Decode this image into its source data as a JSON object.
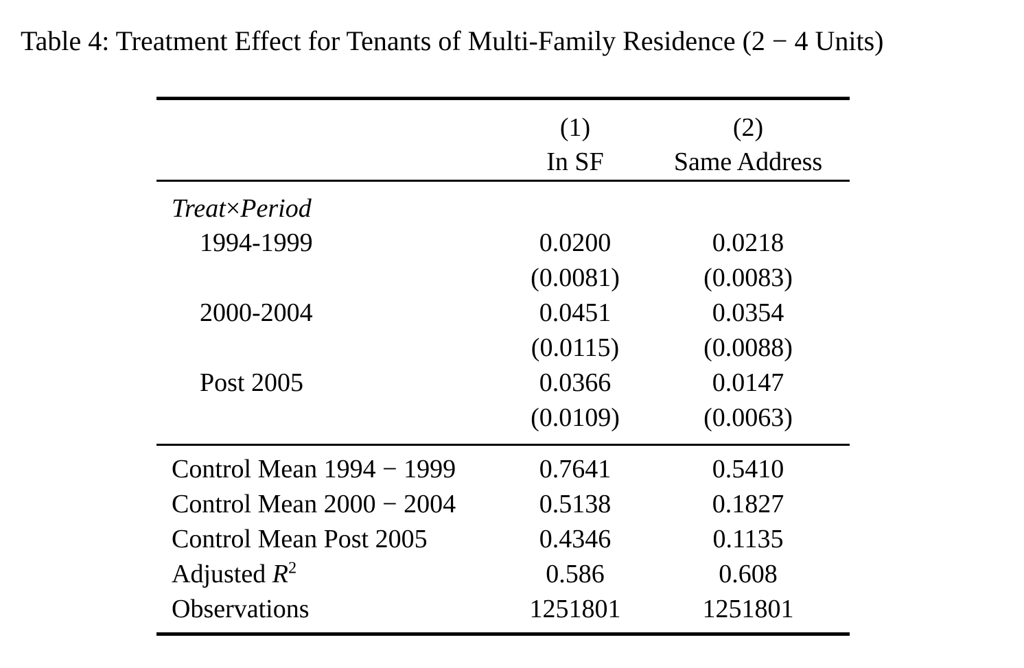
{
  "page": {
    "caption": "Table 4: Treatment Effect for Tenants of Multi-Family Residence (2 − 4 Units)"
  },
  "colors": {
    "text": "#000000",
    "rules": "#000000",
    "background": "#ffffff"
  },
  "table": {
    "column_numbers": [
      "(1)",
      "(2)"
    ],
    "column_labels": [
      "In SF",
      "Same Address"
    ],
    "panel": {
      "word1": "Treat",
      "times": "×",
      "word2": "Period"
    },
    "coef_rows": [
      {
        "label": "1994-1999",
        "values": [
          "0.0200",
          "0.0218"
        ],
        "ses": [
          "(0.0081)",
          "(0.0083)"
        ]
      },
      {
        "label": "2000-2004",
        "values": [
          "0.0451",
          "0.0354"
        ],
        "ses": [
          "(0.0115)",
          "(0.0088)"
        ]
      },
      {
        "label": "Post 2005",
        "values": [
          "0.0366",
          "0.0147"
        ],
        "ses": [
          "(0.0109)",
          "(0.0063)"
        ]
      }
    ],
    "stat_rows": [
      {
        "label": "Control Mean 1994 − 1999",
        "values": [
          "0.7641",
          "0.5410"
        ]
      },
      {
        "label": "Control Mean 2000 − 2004",
        "values": [
          "0.5138",
          "0.1827"
        ]
      },
      {
        "label": "Control Mean Post 2005",
        "values": [
          "0.4346",
          "0.1135"
        ]
      },
      {
        "label_prefix": "Adjusted ",
        "label_math": "R",
        "label_sup": "2",
        "values": [
          "0.586",
          "0.608"
        ]
      },
      {
        "label": "Observations",
        "values": [
          "1251801",
          "1251801"
        ]
      }
    ]
  }
}
